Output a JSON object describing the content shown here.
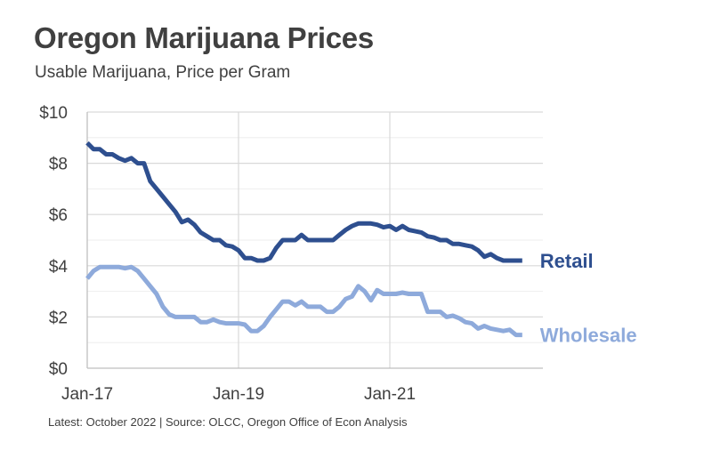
{
  "title": "Oregon Marijuana Prices",
  "subtitle": "Usable Marijuana, Price per Gram",
  "footer": "Latest: October 2022  |  Source: OLCC, Oregon Office of Econ Analysis",
  "chart_data": {
    "type": "line",
    "title": "Oregon Marijuana Prices",
    "subtitle": "Usable Marijuana, Price per Gram",
    "ylim": [
      0,
      10
    ],
    "y_ticks": [
      0,
      2,
      4,
      6,
      8,
      10
    ],
    "y_tick_labels": [
      "$0",
      "$2",
      "$4",
      "$6",
      "$8",
      "$10"
    ],
    "x_tick_labels": [
      "Jan-17",
      "Jan-19",
      "Jan-21"
    ],
    "x_tick_positions": [
      0,
      24,
      48
    ],
    "x_range": [
      0,
      69
    ],
    "vertical_grid_at": [
      24,
      48
    ],
    "grid": true,
    "series": [
      {
        "name": "Retail",
        "color": "#2e4f8f",
        "x": [
          0,
          1,
          2,
          3,
          4,
          5,
          6,
          7,
          8,
          9,
          10,
          11,
          12,
          13,
          14,
          15,
          16,
          17,
          18,
          19,
          20,
          21,
          22,
          23,
          24,
          25,
          26,
          27,
          28,
          29,
          30,
          31,
          32,
          33,
          34,
          35,
          36,
          37,
          38,
          39,
          40,
          41,
          42,
          43,
          44,
          45,
          46,
          47,
          48,
          49,
          50,
          51,
          52,
          53,
          54,
          55,
          56,
          57,
          58,
          59,
          60,
          61,
          62,
          63,
          64,
          65,
          66,
          67,
          68,
          69
        ],
        "values": [
          8.8,
          8.55,
          8.55,
          8.35,
          8.35,
          8.2,
          8.1,
          8.2,
          8.0,
          8.0,
          7.3,
          7.0,
          6.7,
          6.4,
          6.1,
          5.7,
          5.8,
          5.6,
          5.3,
          5.15,
          5.0,
          5.0,
          4.8,
          4.75,
          4.6,
          4.3,
          4.3,
          4.2,
          4.2,
          4.3,
          4.7,
          5.0,
          5.0,
          5.0,
          5.2,
          5.0,
          5.0,
          5.0,
          5.0,
          5.0,
          5.2,
          5.4,
          5.55,
          5.65,
          5.65,
          5.65,
          5.6,
          5.5,
          5.55,
          5.4,
          5.55,
          5.4,
          5.35,
          5.3,
          5.15,
          5.1,
          5.0,
          5.0,
          4.85,
          4.85,
          4.8,
          4.75,
          4.6,
          4.35,
          4.45,
          4.3,
          4.2,
          4.2,
          4.2,
          4.2
        ]
      },
      {
        "name": "Wholesale",
        "color": "#8eaadb",
        "x": [
          0,
          1,
          2,
          3,
          4,
          5,
          6,
          7,
          8,
          9,
          10,
          11,
          12,
          13,
          14,
          15,
          16,
          17,
          18,
          19,
          20,
          21,
          22,
          23,
          24,
          25,
          26,
          27,
          28,
          29,
          30,
          31,
          32,
          33,
          34,
          35,
          36,
          37,
          38,
          39,
          40,
          41,
          42,
          43,
          44,
          45,
          46,
          47,
          48,
          49,
          50,
          51,
          52,
          53,
          54,
          55,
          56,
          57,
          58,
          59,
          60,
          61,
          62,
          63,
          64,
          65,
          66,
          67,
          68,
          69
        ],
        "values": [
          3.5,
          3.8,
          3.95,
          3.95,
          3.95,
          3.95,
          3.9,
          3.95,
          3.8,
          3.5,
          3.2,
          2.9,
          2.4,
          2.1,
          2.0,
          2.0,
          2.0,
          2.0,
          1.8,
          1.8,
          1.9,
          1.8,
          1.75,
          1.75,
          1.75,
          1.7,
          1.45,
          1.45,
          1.65,
          2.0,
          2.3,
          2.6,
          2.6,
          2.45,
          2.6,
          2.4,
          2.4,
          2.4,
          2.2,
          2.2,
          2.4,
          2.7,
          2.8,
          3.2,
          3.0,
          2.65,
          3.05,
          2.9,
          2.9,
          2.9,
          2.95,
          2.9,
          2.9,
          2.9,
          2.2,
          2.2,
          2.2,
          2.0,
          2.05,
          1.95,
          1.8,
          1.75,
          1.55,
          1.65,
          1.55,
          1.5,
          1.45,
          1.5,
          1.3,
          1.3
        ]
      }
    ],
    "legend": "series labels placed at right end of each line"
  }
}
